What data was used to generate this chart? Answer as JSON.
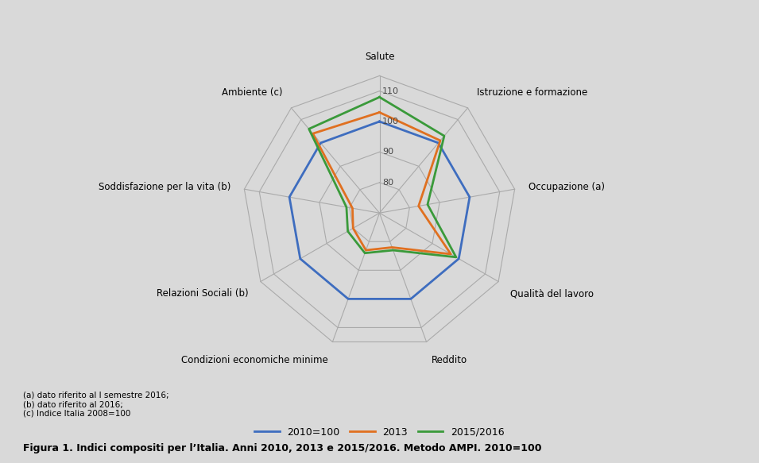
{
  "categories": [
    "Salute",
    "Istruzione e formazione",
    "Occupazione (a)",
    "Qualità del lavoro",
    "Reddito",
    "Condizioni economiche minime",
    "Relazioni Sociali (b)",
    "Soddisfazione per la vita (b)",
    "Ambiente (c)"
  ],
  "series": {
    "2010=100": [
      100,
      100,
      100,
      100,
      100,
      100,
      100,
      100,
      100
    ],
    "2013": [
      103,
      101,
      83,
      97,
      82,
      83,
      80,
      79,
      104
    ],
    "2015/2016": [
      108,
      103,
      86,
      99,
      83,
      84,
      82,
      81,
      106
    ]
  },
  "colors": {
    "2010=100": "#3e6dbf",
    "2013": "#e07020",
    "2015/2016": "#3a9a3a"
  },
  "r_min": 70,
  "r_max": 115,
  "r_ticks": [
    80,
    90,
    100,
    110
  ],
  "background_color": "#d9d9d9",
  "grid_color": "#aaaaaa",
  "line_width": 2.0,
  "caption": "Figura 1. Indici compositi per l’Italia. Anni 2010, 2013 e 2015/2016. Metodo AMPI. 2010=100",
  "footnotes": "(a) dato riferito al I semestre 2016;\n(b) dato riferito al 2016;\n(c) Indice Italia 2008=100"
}
